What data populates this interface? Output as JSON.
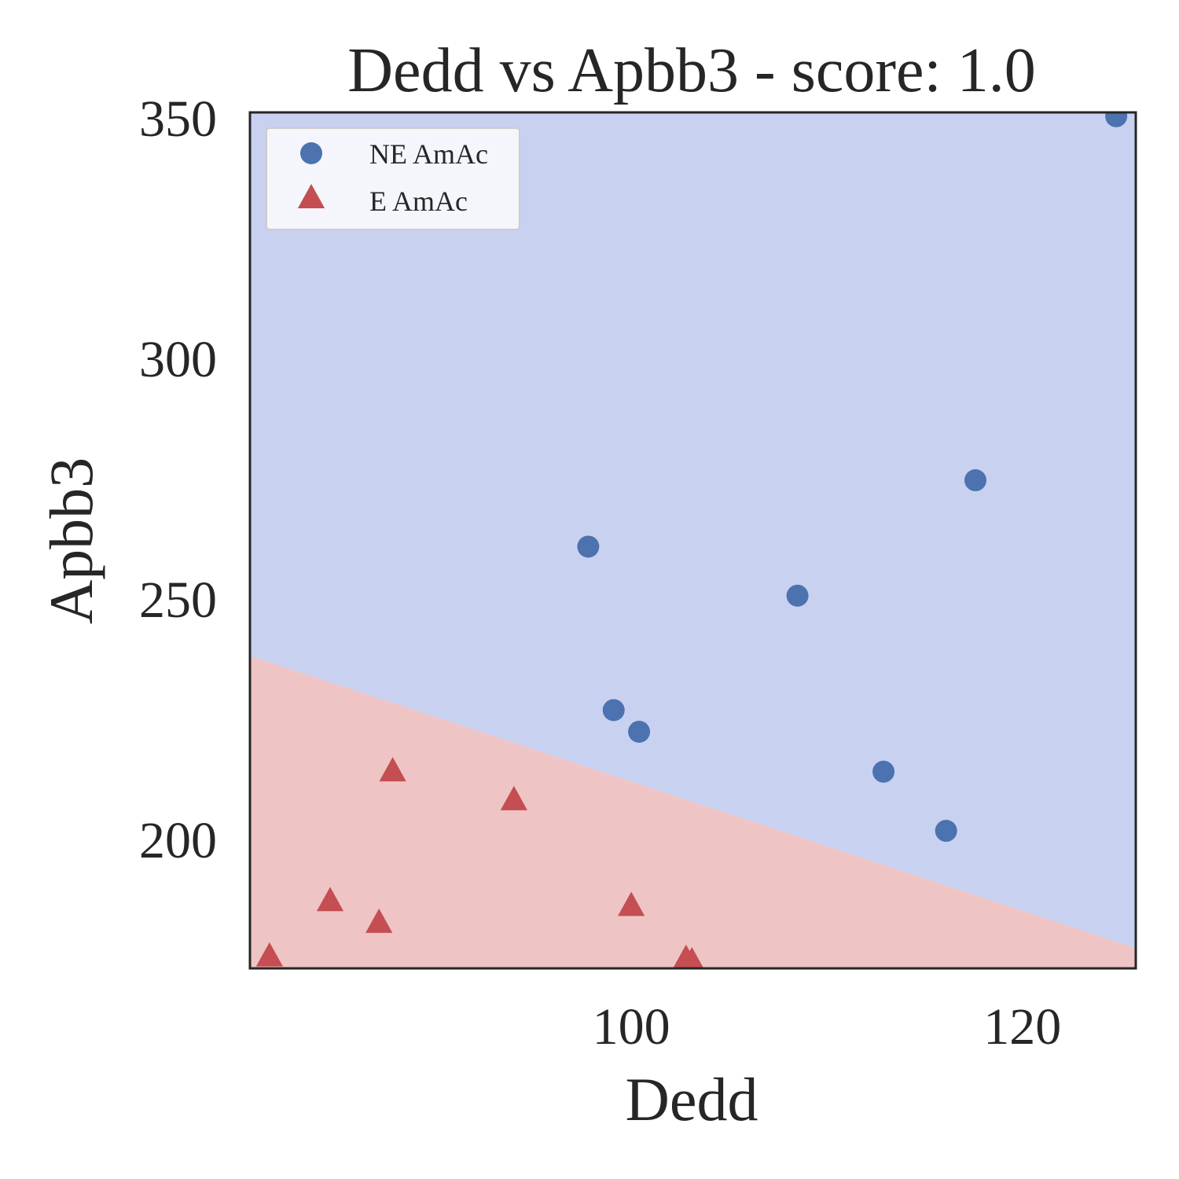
{
  "chart_data": {
    "type": "scatter",
    "title": "Dedd vs Apbb3 - score: 1.0",
    "xlabel": "Dedd",
    "ylabel": "Apbb3",
    "xlim": [
      80.5,
      125.8
    ],
    "ylim": [
      173,
      351
    ],
    "xticks": [
      100,
      120
    ],
    "yticks": [
      200,
      250,
      300,
      350
    ],
    "grid": false,
    "legend_position": "upper-left",
    "decision_boundary": {
      "left": {
        "x": 80.5,
        "y": 238
      },
      "right": {
        "x": 125.8,
        "y": 177.2
      },
      "region_above_color": "#c9d1f1",
      "region_below_color": "#efc4c4"
    },
    "series": [
      {
        "name": "NE AmAc",
        "marker": "circle",
        "color": "#4c72b0",
        "points": [
          [
            97.8,
            260.7
          ],
          [
            99.1,
            226.7
          ],
          [
            100.4,
            222.2
          ],
          [
            108.5,
            250.5
          ],
          [
            112.9,
            213.9
          ],
          [
            116.1,
            201.6
          ],
          [
            117.6,
            274.5
          ],
          [
            124.8,
            350.2
          ]
        ]
      },
      {
        "name": "E AmAc",
        "marker": "triangle",
        "color": "#c44e52",
        "points": [
          [
            81.5,
            175.5
          ],
          [
            84.6,
            187.0
          ],
          [
            87.1,
            182.5
          ],
          [
            87.8,
            214.0
          ],
          [
            94.0,
            208.0
          ],
          [
            100.0,
            186.0
          ],
          [
            102.8,
            175.0
          ],
          [
            103.1,
            174.5
          ]
        ]
      }
    ]
  }
}
